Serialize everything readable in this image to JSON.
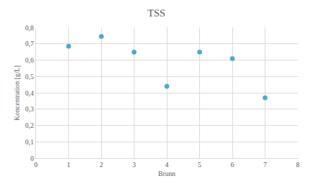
{
  "chart_data": {
    "type": "scatter",
    "title": "TSS",
    "x_label": "Brunn",
    "y_label": "Koncentration [g/L]",
    "x": [
      1,
      2,
      3,
      4,
      5,
      6,
      7
    ],
    "values": [
      0.685,
      0.745,
      0.65,
      0.44,
      0.65,
      0.61,
      0.37
    ],
    "color": "#4bacc6",
    "marker": "circle",
    "xlim": [
      0,
      8
    ],
    "xticks": [
      0,
      1,
      2,
      3,
      4,
      5,
      6,
      7,
      8
    ],
    "ylim": [
      0,
      0.8
    ],
    "yticks": [
      0,
      {
        "value": 0.1,
        "label": "0,1"
      },
      {
        "value": 0.2,
        "label": "0,2"
      },
      {
        "value": 0.3,
        "label": "0,3"
      },
      {
        "value": 0.4,
        "label": "0,4"
      },
      {
        "value": 0.5,
        "label": "0,5"
      },
      {
        "value": 0.6,
        "label": "0,6"
      },
      {
        "value": 0.7,
        "label": "0,7"
      },
      {
        "value": 0.8,
        "label": "0,8"
      }
    ],
    "grid": true
  }
}
